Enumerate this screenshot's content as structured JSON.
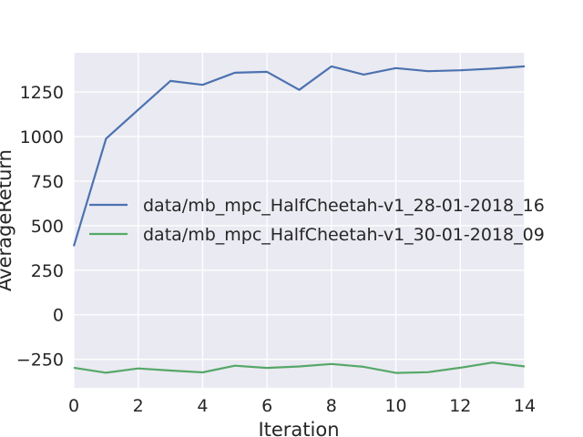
{
  "chart_data": {
    "type": "line",
    "title": "",
    "xlabel": "Iteration",
    "ylabel": "AverageReturn",
    "xlim": [
      0,
      14
    ],
    "ylim": [
      -410,
      1470
    ],
    "xticks": [
      0,
      2,
      4,
      6,
      8,
      10,
      12,
      14
    ],
    "yticks": [
      -250,
      0,
      250,
      500,
      750,
      1000,
      1250
    ],
    "ytick_labels": [
      "−250",
      "0",
      "250",
      "500",
      "750",
      "1000",
      "1250"
    ],
    "grid": true,
    "legend_position": "center-right",
    "x": [
      0,
      1,
      2,
      3,
      4,
      5,
      6,
      7,
      8,
      9,
      10,
      11,
      12,
      13,
      14
    ],
    "series": [
      {
        "name": "data/mb_mpc_HalfCheetah-v1_28-01-2018_16",
        "color": "#4c72b0",
        "values": [
          385,
          988,
          1150,
          1312,
          1290,
          1358,
          1363,
          1262,
          1394,
          1348,
          1384,
          1367,
          1372,
          1381,
          1394
        ]
      },
      {
        "name": "data/mb_mpc_HalfCheetah-v1_30-01-2018_09",
        "color": "#55a868",
        "values": [
          -297,
          -325,
          -301,
          -313,
          -323,
          -286,
          -298,
          -290,
          -276,
          -292,
          -326,
          -322,
          -297,
          -268,
          -290
        ]
      }
    ]
  }
}
